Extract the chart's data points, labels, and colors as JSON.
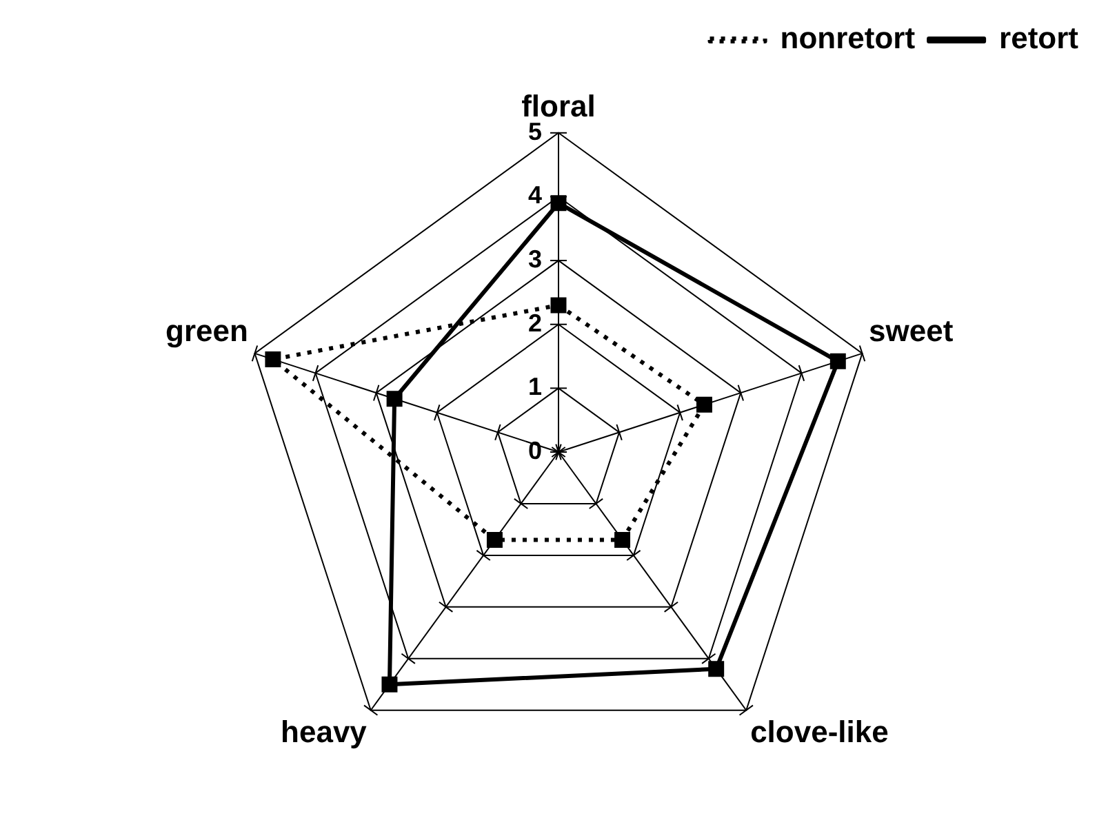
{
  "chart_data": {
    "type": "radar",
    "categories": [
      "floral",
      "sweet",
      "clove-like",
      "heavy",
      "green"
    ],
    "ylim": [
      0,
      5
    ],
    "yticks": [
      0,
      1,
      2,
      3,
      4,
      5
    ],
    "grid": true,
    "legend": "top right",
    "marker": "square",
    "series": [
      {
        "name": "nonretort",
        "color": "#000000",
        "line_style": "dotted",
        "values": [
          2.3,
          2.4,
          1.7,
          1.7,
          4.7
        ]
      },
      {
        "name": "retort",
        "color": "#000000",
        "line_style": "solid",
        "values": [
          3.9,
          4.6,
          4.2,
          4.5,
          2.7
        ]
      }
    ]
  }
}
